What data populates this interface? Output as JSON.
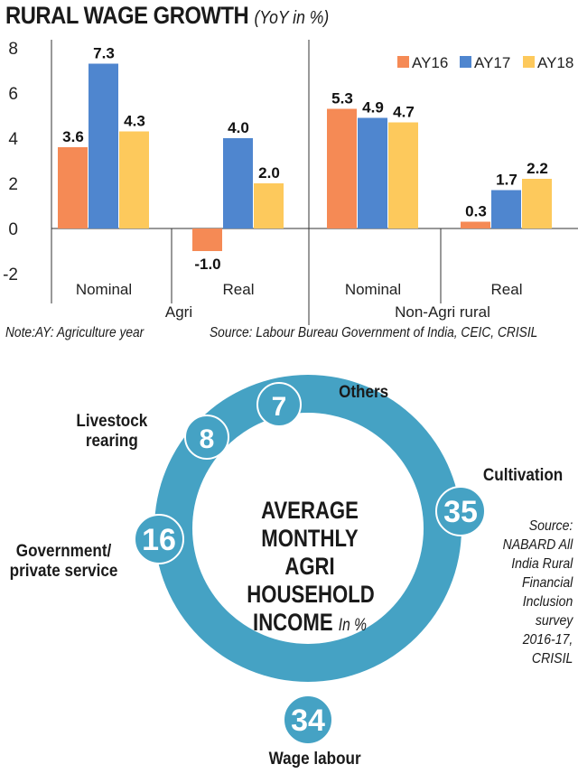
{
  "title": "RURAL WAGE GROWTH",
  "title_sub": "(YoY in %)",
  "note_left": "Note:AY: Agriculture year",
  "note_right": "Source: Labour Bureau Government of India, CEIC, CRISIL",
  "colors": {
    "AY16": "#f58a55",
    "AY17": "#4f86cf",
    "AY18": "#fdc95c",
    "ring": "#45a2c4",
    "ring_light": "#6bb8d4"
  },
  "chart_data": [
    {
      "type": "bar",
      "title": "RURAL WAGE GROWTH",
      "subtitle": "(YoY in %)",
      "categories": [
        "Nominal",
        "Real",
        "Nominal",
        "Real"
      ],
      "groups": [
        "Agri",
        "Non-Agri rural"
      ],
      "series": [
        {
          "name": "AY16",
          "values": [
            3.6,
            -1.0,
            5.3,
            0.3
          ],
          "labels": [
            "3.6",
            "-1.0",
            "5.3",
            "0.3"
          ]
        },
        {
          "name": "AY17",
          "values": [
            7.3,
            4.0,
            4.9,
            1.7
          ],
          "labels": [
            "7.3",
            "4.0",
            "4.9",
            "1.7"
          ]
        },
        {
          "name": "AY18",
          "values": [
            4.3,
            2.0,
            4.7,
            2.2
          ],
          "labels": [
            "4.3",
            "2.0",
            "4.7",
            "2.2"
          ]
        }
      ],
      "yticks": [
        "8",
        "6",
        "4",
        "2",
        "0",
        "-2"
      ],
      "ylim": [
        -2.6,
        8
      ],
      "legend": "top-right"
    },
    {
      "type": "pie",
      "title": "AVERAGE MONTHLY AGRI HOUSEHOLD INCOME",
      "unit": "In %",
      "slices": [
        {
          "label": "Cultivation",
          "value": 35,
          "text": "35"
        },
        {
          "label": "Wage labour",
          "value": 34,
          "text": "34"
        },
        {
          "label": "Government/ private service",
          "value": 16,
          "text": "16"
        },
        {
          "label": "Livestock rearing",
          "value": 8,
          "text": "8"
        },
        {
          "label": "Others",
          "value": 7,
          "text": "7"
        }
      ],
      "source": "Source: NABARD All India Rural Financial Inclusion survey 2016-17, CRISIL"
    }
  ],
  "donut_labels": {
    "others": "Others",
    "livestock": [
      "Livestock",
      "rearing"
    ],
    "cultivation": "Cultivation",
    "govt": [
      "Government/",
      "private service"
    ],
    "wage": "Wage labour"
  },
  "center": {
    "line1": "AVERAGE",
    "line2": "MONTHLY",
    "line3": "AGRI",
    "line4": "HOUSEHOLD",
    "line5": "INCOME",
    "unit": "In %"
  },
  "source2": [
    "Source:",
    "NABARD All",
    "India Rural",
    "Financial",
    "Inclusion",
    "survey",
    "2016-17,",
    "CRISIL"
  ]
}
